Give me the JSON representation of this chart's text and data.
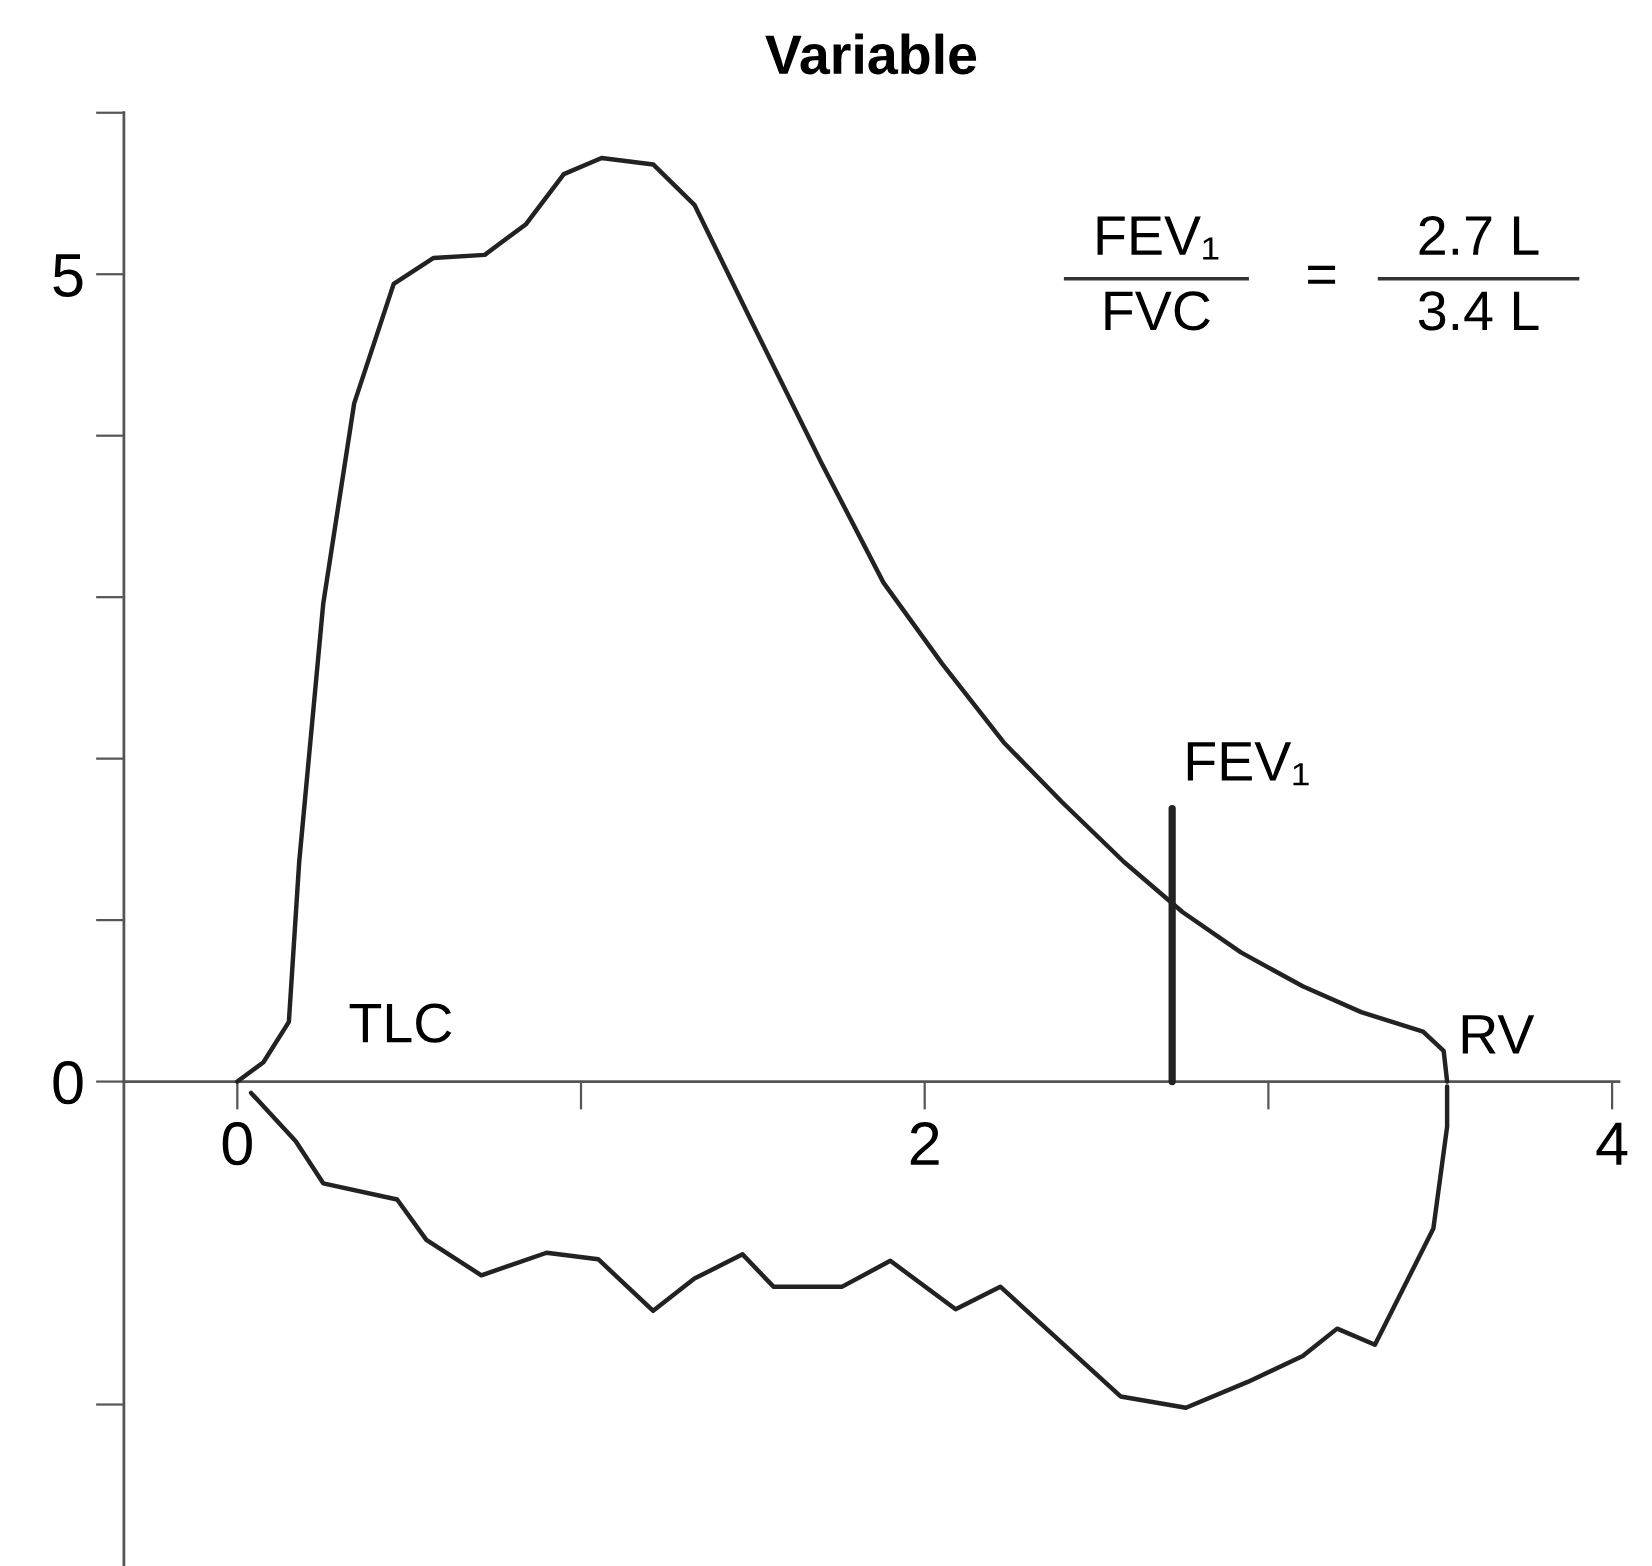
{
  "chart_data": {
    "type": "line",
    "title": "Variable",
    "series": [
      {
        "color": "#222222",
        "x": [
          0,
          0.076,
          0.15,
          0.18,
          0.25,
          0.34,
          0.455,
          0.57,
          0.72,
          0.84,
          0.95,
          1.06,
          1.21,
          1.33,
          1.5,
          1.7,
          1.88,
          2.05,
          2.23,
          2.4,
          2.58,
          2.75,
          2.92,
          3.1,
          3.27,
          3.45,
          3.51,
          3.52
        ],
        "values": [
          0,
          0.12,
          0.37,
          1.36,
          2.96,
          4.2,
          4.94,
          5.1,
          5.12,
          5.31,
          5.62,
          5.72,
          5.68,
          5.43,
          4.69,
          3.83,
          3.09,
          2.59,
          2.1,
          1.73,
          1.36,
          1.05,
          0.8,
          0.59,
          0.43,
          0.31,
          0.19,
          0
        ]
      },
      {
        "color": "#222222",
        "x": [
          0.04,
          0.17,
          0.25,
          0.465,
          0.55,
          0.71,
          0.9,
          1.05,
          1.21,
          1.33,
          1.47,
          1.56,
          1.76,
          1.9,
          2.09,
          2.22,
          2.57,
          2.76,
          2.94,
          3.1,
          3.2,
          3.31,
          3.48,
          3.52,
          3.52
        ],
        "values": [
          -0.07,
          -0.37,
          -0.63,
          -0.73,
          -0.98,
          -1.2,
          -1.06,
          -1.1,
          -1.42,
          -1.22,
          -1.07,
          -1.27,
          -1.27,
          -1.11,
          -1.41,
          -1.27,
          -1.95,
          -2.02,
          -1.86,
          -1.7,
          -1.53,
          -1.63,
          -0.91,
          -0.28,
          -0.03
        ]
      },
      {
        "color": "#222222",
        "x": [
          2.72,
          2.72
        ],
        "values": [
          0,
          1.69
        ]
      }
    ],
    "xlim": [
      -0.33,
      4.02
    ],
    "ylim": [
      -3,
      6
    ],
    "xticks": [
      0,
      {
        "value": 1,
        "label": null
      },
      2,
      {
        "value": 3,
        "label": null
      },
      4
    ],
    "yticks": [
      {
        "value": -2,
        "label": null
      },
      0,
      {
        "value": 1,
        "label": null
      },
      {
        "value": 2,
        "label": null
      },
      {
        "value": 3,
        "label": null
      },
      {
        "value": 4,
        "label": null
      },
      5,
      {
        "value": 6,
        "label": null
      }
    ],
    "annotations": [
      {
        "text": "TLC",
        "x": 0,
        "y": 0
      },
      {
        "text": "RV",
        "x": 3.52,
        "y": 0
      },
      {
        "text": "FEV₁",
        "x": 2.72,
        "y": 1.69
      },
      "FEV₁",
      "FVC",
      "=",
      "2.7 L",
      "3.4 L"
    ]
  }
}
